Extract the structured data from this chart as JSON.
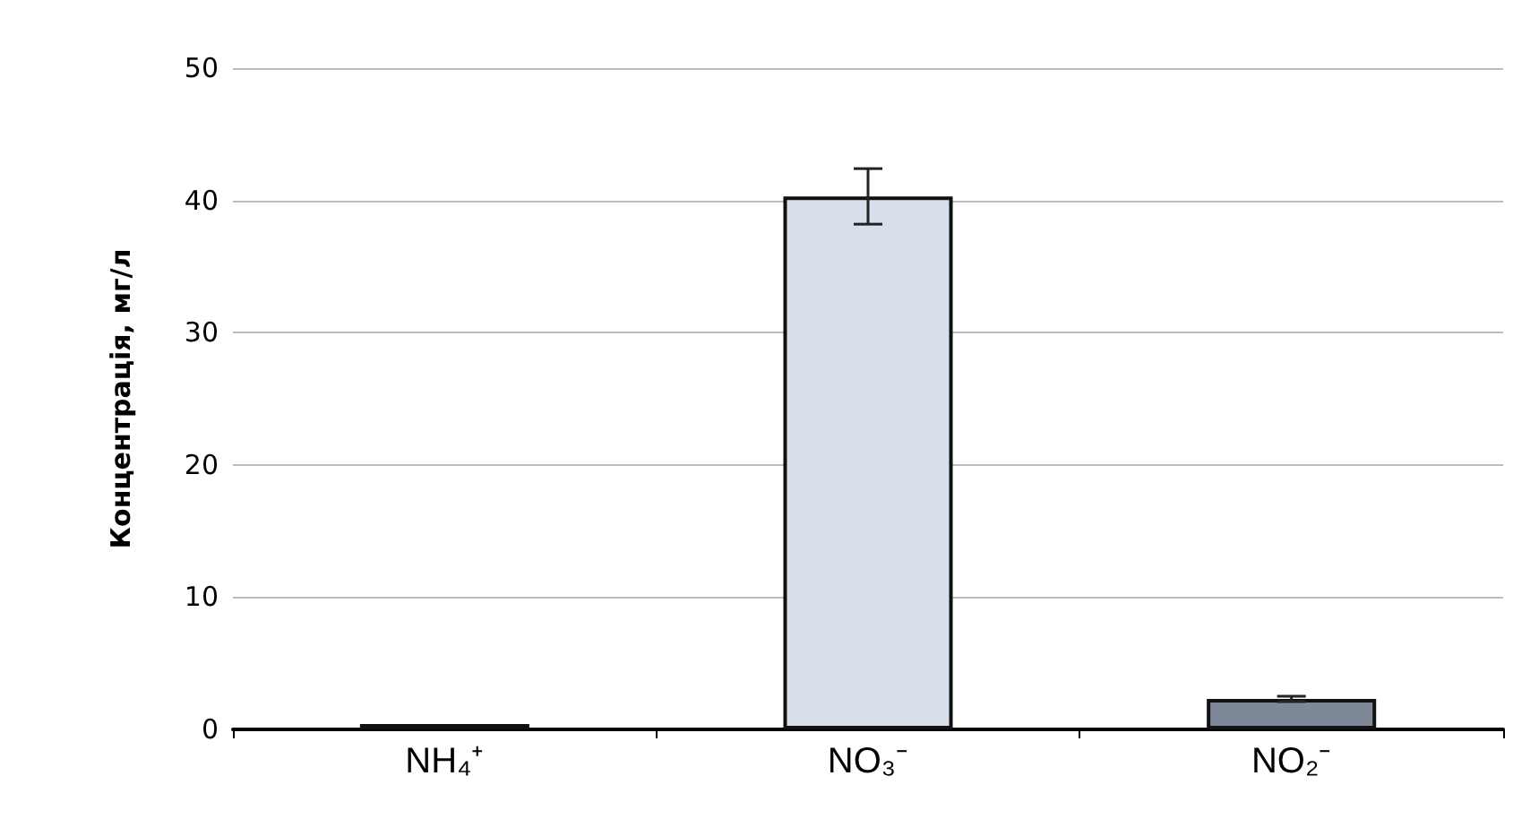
{
  "chart_data": {
    "type": "bar",
    "ylabel": "Концентрація, мг/л",
    "categories": [
      "NH₄⁺",
      "NO₃⁻",
      "NO₂⁻"
    ],
    "values": [
      0.4,
      40.3,
      2.3
    ],
    "errors": [
      null,
      2.1,
      0.2
    ],
    "colors": [
      "#d8dbe0",
      "#d6dfea",
      "#7f8899"
    ],
    "ylim": [
      0,
      50
    ],
    "yticks": [
      0,
      10,
      20,
      30,
      40,
      50
    ],
    "grid": "y"
  }
}
